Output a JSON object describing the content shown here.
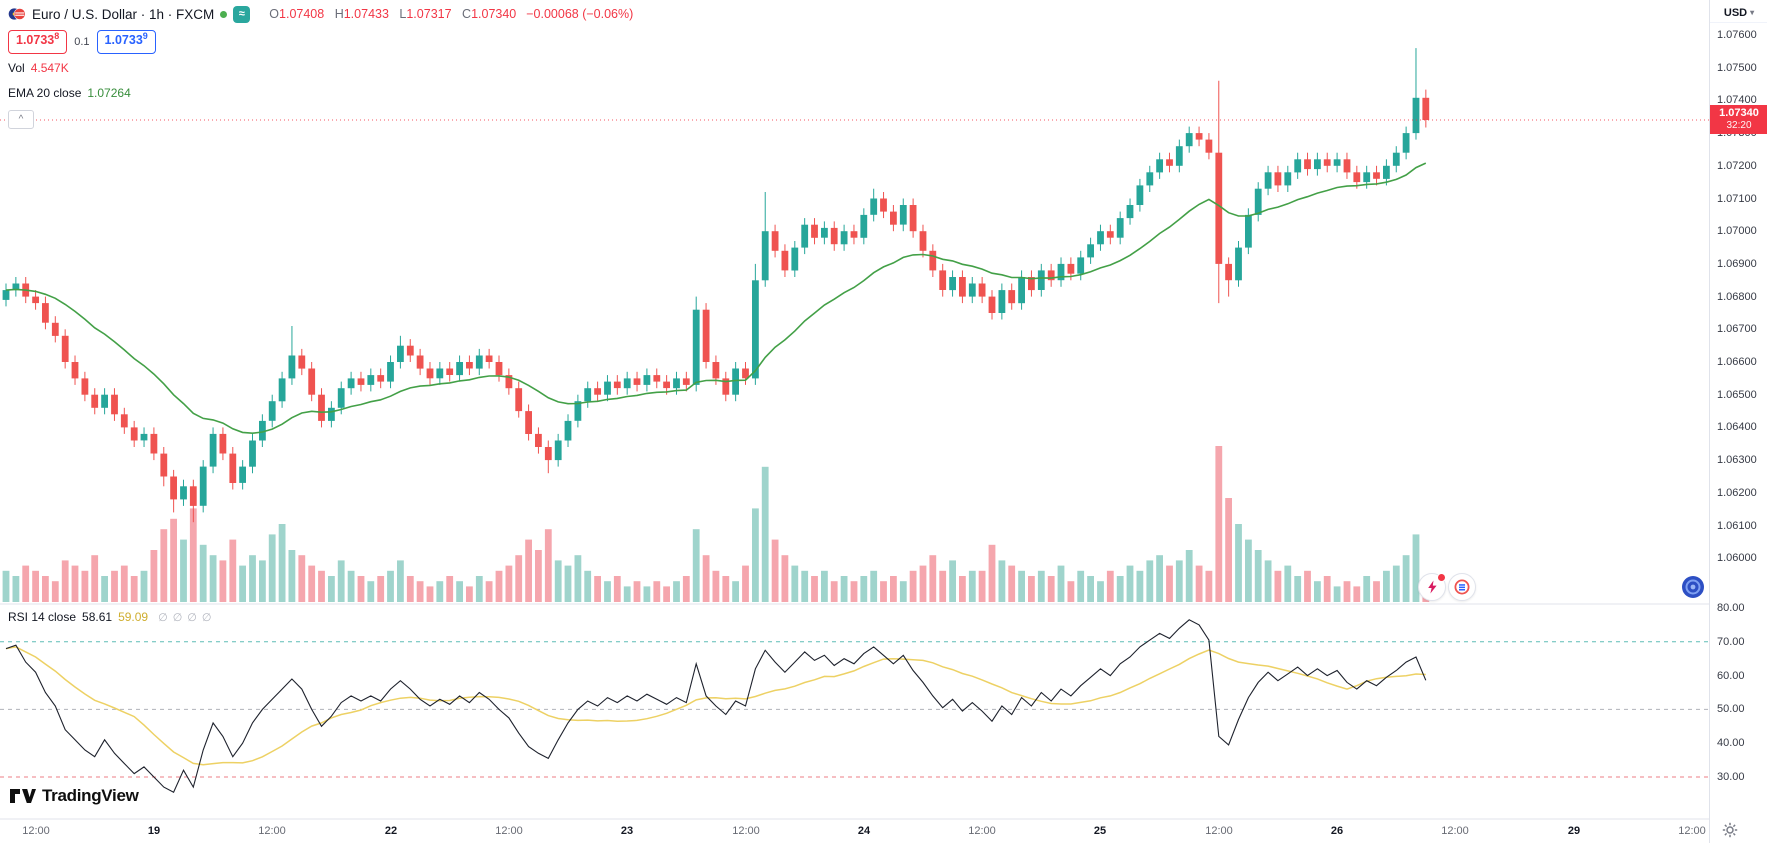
{
  "header": {
    "symbol_title": "Euro / U.S. Dollar · 1h · FXCM",
    "ohlc": [
      {
        "label": "O",
        "value": "1.07408"
      },
      {
        "label": "H",
        "value": "1.07433"
      },
      {
        "label": "L",
        "value": "1.07317"
      },
      {
        "label": "C",
        "value": "1.07340"
      }
    ],
    "change": "−0.00068 (−0.06%)",
    "quote": {
      "sell": {
        "base": "1.0733",
        "sup": "8"
      },
      "spread": "0.1",
      "buy": {
        "base": "1.0733",
        "sup": "9"
      }
    },
    "volume": {
      "label": "Vol",
      "value": "4.547K"
    },
    "ema": {
      "label": "EMA 20 close",
      "value": "1.07264"
    }
  },
  "rsi_legend": {
    "label": "RSI 14 close",
    "value": "58.61",
    "ma_value": "59.09",
    "placeholders": [
      "∅",
      "∅",
      "∅",
      "∅"
    ]
  },
  "price_axis": {
    "currency": "USD",
    "labels": [
      "1.07600",
      "1.07500",
      "1.07400",
      "1.07300",
      "1.07200",
      "1.07100",
      "1.07000",
      "1.06900",
      "1.06800",
      "1.06700",
      "1.06600",
      "1.06500",
      "1.06400",
      "1.06300",
      "1.06200",
      "1.06100",
      "1.06000"
    ],
    "last_price": "1.07340",
    "countdown": "32:20"
  },
  "rsi_axis": {
    "labels": [
      "80.00",
      "70.00",
      "60.00",
      "50.00",
      "40.00",
      "30.00"
    ]
  },
  "time_axis": {
    "ticks": [
      {
        "label": "12:00",
        "i": 3,
        "major": false
      },
      {
        "label": "19",
        "i": 15,
        "major": true
      },
      {
        "label": "12:00",
        "i": 27,
        "major": false
      },
      {
        "label": "22",
        "i": 39,
        "major": true
      },
      {
        "label": "12:00",
        "i": 51,
        "major": false
      },
      {
        "label": "23",
        "i": 63,
        "major": true
      },
      {
        "label": "12:00",
        "i": 75,
        "major": false
      },
      {
        "label": "24",
        "i": 87,
        "major": true
      },
      {
        "label": "12:00",
        "i": 99,
        "major": false
      },
      {
        "label": "25",
        "i": 111,
        "major": true
      },
      {
        "label": "12:00",
        "i": 123,
        "major": false
      },
      {
        "label": "26",
        "i": 135,
        "major": true
      },
      {
        "label": "12:00",
        "i": 147,
        "major": false
      },
      {
        "label": "29",
        "i": 159,
        "major": true
      },
      {
        "label": "12:00",
        "i": 171,
        "major": false
      }
    ]
  },
  "watermark": "TradingView",
  "icons": {
    "caret_down": "▾",
    "collapse_chevron": "^",
    "waves": "≈"
  },
  "colors": {
    "up": "#26a69a",
    "down": "#ef5350",
    "vol_up": "#9fd4cc",
    "vol_down": "#f5a6ad",
    "ema": "#43a047",
    "rsi_line": "#1e222d",
    "rsi_ma": "#edd164",
    "band_upper": "#2aa79e",
    "band_mid": "#9598a1",
    "band_lower": "#e8505e",
    "last_price_bg": "#f23645",
    "buy": "#2962ff",
    "sell": "#f23645",
    "market_open": "#4caf50",
    "ema_value": "#388e3c",
    "rsi_ma_text": "#cfae2f"
  },
  "chart_data": {
    "type": "candlestick+volume+rsi",
    "symbol": "EURUSD",
    "exchange": "FXCM",
    "timeframe": "1h",
    "last_price": 1.0734,
    "last_volume_k": 4.547,
    "ema_period": 20,
    "ema_last": 1.07264,
    "rsi_period": 14,
    "rsi_last": 58.61,
    "rsi_ma_period": 14,
    "rsi_ma_last": 59.09,
    "rsi_levels": [
      70,
      50,
      30
    ],
    "price_axis_range": [
      1.076,
      1.06
    ],
    "rsi_axis_range": [
      80,
      30
    ],
    "candles": [
      [
        1.0679,
        1.0684,
        1.0677,
        1.0682,
        6
      ],
      [
        1.0682,
        1.0686,
        1.068,
        1.0684,
        5
      ],
      [
        1.0684,
        1.0686,
        1.0678,
        1.068,
        7
      ],
      [
        1.068,
        1.0682,
        1.0676,
        1.0678,
        6
      ],
      [
        1.0678,
        1.068,
        1.067,
        1.0672,
        5
      ],
      [
        1.0672,
        1.0674,
        1.0666,
        1.0668,
        4
      ],
      [
        1.0668,
        1.067,
        1.0658,
        1.066,
        8
      ],
      [
        1.066,
        1.0662,
        1.0653,
        1.0655,
        7
      ],
      [
        1.0655,
        1.0657,
        1.0648,
        1.065,
        6
      ],
      [
        1.065,
        1.0652,
        1.0644,
        1.0646,
        9
      ],
      [
        1.0646,
        1.0652,
        1.0644,
        1.065,
        5
      ],
      [
        1.065,
        1.0652,
        1.0642,
        1.0644,
        6
      ],
      [
        1.0644,
        1.0646,
        1.0638,
        1.064,
        7
      ],
      [
        1.064,
        1.0642,
        1.0634,
        1.0636,
        5
      ],
      [
        1.0636,
        1.064,
        1.0634,
        1.0638,
        6
      ],
      [
        1.0638,
        1.064,
        1.063,
        1.0632,
        10
      ],
      [
        1.0632,
        1.0634,
        1.0622,
        1.0625,
        14
      ],
      [
        1.0625,
        1.0627,
        1.0614,
        1.0618,
        16
      ],
      [
        1.0618,
        1.0624,
        1.0616,
        1.0622,
        12
      ],
      [
        1.0622,
        1.0624,
        1.0611,
        1.0616,
        18
      ],
      [
        1.0616,
        1.063,
        1.0614,
        1.0628,
        11
      ],
      [
        1.0628,
        1.064,
        1.0626,
        1.0638,
        9
      ],
      [
        1.0638,
        1.064,
        1.063,
        1.0632,
        8
      ],
      [
        1.0632,
        1.0634,
        1.0621,
        1.0623,
        12
      ],
      [
        1.0623,
        1.063,
        1.0621,
        1.0628,
        7
      ],
      [
        1.0628,
        1.0638,
        1.0626,
        1.0636,
        9
      ],
      [
        1.0636,
        1.0644,
        1.0634,
        1.0642,
        8
      ],
      [
        1.0642,
        1.065,
        1.064,
        1.0648,
        13
      ],
      [
        1.0648,
        1.0657,
        1.0646,
        1.0655,
        15
      ],
      [
        1.0655,
        1.0671,
        1.0653,
        1.0662,
        10
      ],
      [
        1.0662,
        1.0664,
        1.0656,
        1.0658,
        9
      ],
      [
        1.0658,
        1.066,
        1.0648,
        1.065,
        7
      ],
      [
        1.065,
        1.0652,
        1.064,
        1.0642,
        6
      ],
      [
        1.0642,
        1.0648,
        1.064,
        1.0646,
        5
      ],
      [
        1.0646,
        1.0654,
        1.0644,
        1.0652,
        8
      ],
      [
        1.0652,
        1.0657,
        1.065,
        1.0655,
        6
      ],
      [
        1.0655,
        1.0657,
        1.0651,
        1.0653,
        5
      ],
      [
        1.0653,
        1.0658,
        1.0651,
        1.0656,
        4
      ],
      [
        1.0656,
        1.0658,
        1.0652,
        1.0654,
        5
      ],
      [
        1.0654,
        1.0662,
        1.0652,
        1.066,
        6
      ],
      [
        1.066,
        1.0668,
        1.0658,
        1.0665,
        8
      ],
      [
        1.0665,
        1.0667,
        1.066,
        1.0662,
        5
      ],
      [
        1.0662,
        1.0664,
        1.0656,
        1.0658,
        4
      ],
      [
        1.0658,
        1.066,
        1.0653,
        1.0655,
        3
      ],
      [
        1.0655,
        1.066,
        1.0653,
        1.0658,
        4
      ],
      [
        1.0658,
        1.066,
        1.0654,
        1.0656,
        5
      ],
      [
        1.0656,
        1.0662,
        1.0654,
        1.066,
        4
      ],
      [
        1.066,
        1.0662,
        1.0656,
        1.0658,
        3
      ],
      [
        1.0658,
        1.0664,
        1.0656,
        1.0662,
        5
      ],
      [
        1.0662,
        1.0664,
        1.0658,
        1.066,
        4
      ],
      [
        1.066,
        1.0662,
        1.0654,
        1.0656,
        6
      ],
      [
        1.0656,
        1.0658,
        1.065,
        1.0652,
        7
      ],
      [
        1.0652,
        1.0654,
        1.0643,
        1.0645,
        9
      ],
      [
        1.0645,
        1.0647,
        1.0636,
        1.0638,
        12
      ],
      [
        1.0638,
        1.064,
        1.0632,
        1.0634,
        10
      ],
      [
        1.0634,
        1.0636,
        1.0626,
        1.063,
        14
      ],
      [
        1.063,
        1.0638,
        1.0628,
        1.0636,
        8
      ],
      [
        1.0636,
        1.0644,
        1.0634,
        1.0642,
        7
      ],
      [
        1.0642,
        1.065,
        1.064,
        1.0648,
        9
      ],
      [
        1.0648,
        1.0654,
        1.0646,
        1.0652,
        6
      ],
      [
        1.0652,
        1.0654,
        1.0648,
        1.065,
        5
      ],
      [
        1.065,
        1.0656,
        1.0648,
        1.0654,
        4
      ],
      [
        1.0654,
        1.0656,
        1.065,
        1.0652,
        5
      ],
      [
        1.0652,
        1.0657,
        1.065,
        1.0655,
        3
      ],
      [
        1.0655,
        1.0657,
        1.0651,
        1.0653,
        4
      ],
      [
        1.0653,
        1.0658,
        1.0651,
        1.0656,
        3
      ],
      [
        1.0656,
        1.0658,
        1.0652,
        1.0654,
        4
      ],
      [
        1.0654,
        1.0656,
        1.065,
        1.0652,
        3
      ],
      [
        1.0652,
        1.0657,
        1.065,
        1.0655,
        4
      ],
      [
        1.0655,
        1.0657,
        1.0651,
        1.0653,
        5
      ],
      [
        1.0653,
        1.068,
        1.0651,
        1.0676,
        14
      ],
      [
        1.0676,
        1.0678,
        1.0658,
        1.066,
        9
      ],
      [
        1.066,
        1.0662,
        1.0653,
        1.0655,
        6
      ],
      [
        1.0655,
        1.0657,
        1.0648,
        1.065,
        5
      ],
      [
        1.065,
        1.066,
        1.0648,
        1.0658,
        4
      ],
      [
        1.0658,
        1.066,
        1.0653,
        1.0655,
        7
      ],
      [
        1.0655,
        1.069,
        1.0653,
        1.0685,
        18
      ],
      [
        1.0685,
        1.0712,
        1.0683,
        1.07,
        26
      ],
      [
        1.07,
        1.0702,
        1.0692,
        1.0694,
        12
      ],
      [
        1.0694,
        1.0696,
        1.0686,
        1.0688,
        9
      ],
      [
        1.0688,
        1.0697,
        1.0686,
        1.0695,
        7
      ],
      [
        1.0695,
        1.0704,
        1.0693,
        1.0702,
        6
      ],
      [
        1.0702,
        1.0704,
        1.0696,
        1.0698,
        5
      ],
      [
        1.0698,
        1.0703,
        1.0696,
        1.0701,
        6
      ],
      [
        1.0701,
        1.0703,
        1.0694,
        1.0696,
        4
      ],
      [
        1.0696,
        1.0702,
        1.0694,
        1.07,
        5
      ],
      [
        1.07,
        1.0702,
        1.0696,
        1.0698,
        4
      ],
      [
        1.0698,
        1.0707,
        1.0696,
        1.0705,
        5
      ],
      [
        1.0705,
        1.0713,
        1.0703,
        1.071,
        6
      ],
      [
        1.071,
        1.0712,
        1.0704,
        1.0706,
        4
      ],
      [
        1.0706,
        1.0708,
        1.07,
        1.0702,
        5
      ],
      [
        1.0702,
        1.071,
        1.07,
        1.0708,
        4
      ],
      [
        1.0708,
        1.071,
        1.0698,
        1.07,
        6
      ],
      [
        1.07,
        1.0702,
        1.0692,
        1.0694,
        7
      ],
      [
        1.0694,
        1.0696,
        1.0686,
        1.0688,
        9
      ],
      [
        1.0688,
        1.069,
        1.068,
        1.0682,
        6
      ],
      [
        1.0682,
        1.0688,
        1.068,
        1.0686,
        8
      ],
      [
        1.0686,
        1.0688,
        1.0678,
        1.068,
        5
      ],
      [
        1.068,
        1.0686,
        1.0678,
        1.0684,
        6
      ],
      [
        1.0684,
        1.0686,
        1.0678,
        1.068,
        6
      ],
      [
        1.068,
        1.0682,
        1.0673,
        1.0675,
        11
      ],
      [
        1.0675,
        1.0684,
        1.0673,
        1.0682,
        8
      ],
      [
        1.0682,
        1.0684,
        1.0676,
        1.0678,
        7
      ],
      [
        1.0678,
        1.0688,
        1.0676,
        1.0686,
        6
      ],
      [
        1.0686,
        1.0688,
        1.068,
        1.0682,
        5
      ],
      [
        1.0682,
        1.069,
        1.068,
        1.0688,
        6
      ],
      [
        1.0688,
        1.069,
        1.0683,
        1.0685,
        5
      ],
      [
        1.0685,
        1.0692,
        1.0683,
        1.069,
        7
      ],
      [
        1.069,
        1.0692,
        1.0685,
        1.0687,
        4
      ],
      [
        1.0687,
        1.0694,
        1.0685,
        1.0692,
        6
      ],
      [
        1.0692,
        1.0698,
        1.069,
        1.0696,
        5
      ],
      [
        1.0696,
        1.0702,
        1.0694,
        1.07,
        4
      ],
      [
        1.07,
        1.0702,
        1.0696,
        1.0698,
        6
      ],
      [
        1.0698,
        1.0706,
        1.0696,
        1.0704,
        5
      ],
      [
        1.0704,
        1.071,
        1.0702,
        1.0708,
        7
      ],
      [
        1.0708,
        1.0716,
        1.0706,
        1.0714,
        6
      ],
      [
        1.0714,
        1.072,
        1.0712,
        1.0718,
        8
      ],
      [
        1.0718,
        1.0724,
        1.0716,
        1.0722,
        9
      ],
      [
        1.0722,
        1.0724,
        1.0718,
        1.072,
        7
      ],
      [
        1.072,
        1.0728,
        1.0718,
        1.0726,
        8
      ],
      [
        1.0726,
        1.0732,
        1.0724,
        1.073,
        10
      ],
      [
        1.073,
        1.0732,
        1.0726,
        1.0728,
        7
      ],
      [
        1.0728,
        1.073,
        1.0722,
        1.0724,
        6
      ],
      [
        1.0724,
        1.0746,
        1.0678,
        1.069,
        30
      ],
      [
        1.069,
        1.0692,
        1.068,
        1.0685,
        20
      ],
      [
        1.0685,
        1.0697,
        1.0683,
        1.0695,
        15
      ],
      [
        1.0695,
        1.0707,
        1.0693,
        1.0705,
        12
      ],
      [
        1.0705,
        1.0715,
        1.0703,
        1.0713,
        10
      ],
      [
        1.0713,
        1.072,
        1.0711,
        1.0718,
        8
      ],
      [
        1.0718,
        1.072,
        1.0712,
        1.0714,
        6
      ],
      [
        1.0714,
        1.072,
        1.0712,
        1.0718,
        7
      ],
      [
        1.0718,
        1.0724,
        1.0716,
        1.0722,
        5
      ],
      [
        1.0722,
        1.0724,
        1.0717,
        1.0719,
        6
      ],
      [
        1.0719,
        1.0724,
        1.0717,
        1.0722,
        4
      ],
      [
        1.0722,
        1.0724,
        1.0718,
        1.072,
        5
      ],
      [
        1.072,
        1.0724,
        1.0718,
        1.0722,
        3
      ],
      [
        1.0722,
        1.0724,
        1.0716,
        1.0718,
        4
      ],
      [
        1.0718,
        1.072,
        1.0713,
        1.0715,
        3
      ],
      [
        1.0715,
        1.072,
        1.0713,
        1.0718,
        5
      ],
      [
        1.0718,
        1.072,
        1.0714,
        1.0716,
        4
      ],
      [
        1.0716,
        1.0722,
        1.0714,
        1.072,
        6
      ],
      [
        1.072,
        1.0726,
        1.0718,
        1.0724,
        7
      ],
      [
        1.0724,
        1.0732,
        1.0722,
        1.073,
        9
      ],
      [
        1.073,
        1.0756,
        1.0728,
        1.07408,
        13
      ],
      [
        1.07408,
        1.07433,
        1.07317,
        1.0734,
        4.547
      ]
    ],
    "rsi": [
      68,
      69,
      64,
      61,
      55,
      51,
      44,
      41,
      38,
      36,
      41,
      37,
      34,
      31,
      33,
      30,
      27,
      25.5,
      32,
      27,
      38,
      46,
      42,
      36,
      40,
      46,
      50,
      53,
      56,
      59,
      56,
      50,
      45,
      48,
      52,
      54,
      52.5,
      54,
      52.5,
      56,
      58.5,
      56,
      53,
      51,
      53,
      51.5,
      54,
      52,
      55,
      53,
      50,
      47.5,
      43,
      39,
      37,
      35.5,
      41,
      46,
      50,
      52.5,
      51,
      53.5,
      52,
      54,
      52.5,
      54.5,
      53,
      51.5,
      53.5,
      52,
      63.5,
      54,
      51,
      48.5,
      52.5,
      51,
      62,
      67.5,
      64,
      61,
      64,
      67,
      64.5,
      66,
      63,
      65,
      63.5,
      66.5,
      68.5,
      66,
      63.5,
      66,
      61.5,
      58,
      54,
      50.5,
      53,
      49.5,
      52,
      49.5,
      46.5,
      51,
      48.5,
      53.5,
      51,
      55,
      52.5,
      56,
      54,
      57,
      59.5,
      62,
      60,
      63.5,
      65.5,
      68.5,
      70.5,
      72.5,
      71,
      74,
      76.5,
      75,
      70.5,
      42,
      39.5,
      47,
      53.5,
      58,
      61,
      58.5,
      60.5,
      62.5,
      60,
      62,
      60,
      61.5,
      58,
      56,
      58.5,
      57,
      59.5,
      61.5,
      64,
      65.5,
      58.61
    ]
  }
}
